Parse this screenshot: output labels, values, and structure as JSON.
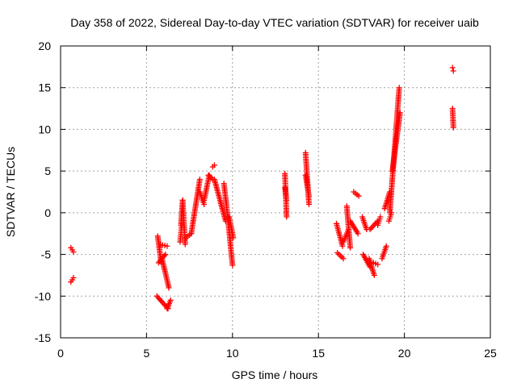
{
  "chart_data": {
    "type": "scatter",
    "title": "Day 358 of 2022, Sidereal Day-to-day VTEC variation (SDTVAR) for receiver uaib",
    "xlabel": "GPS time / hours",
    "ylabel": "SDTVAR / TECUs",
    "xlim": [
      0,
      25
    ],
    "ylim": [
      -15,
      20
    ],
    "xticks": [
      "0",
      "5",
      "10",
      "15",
      "20",
      "25"
    ],
    "yticks": [
      "-15",
      "-10",
      "-5",
      "0",
      "5",
      "10",
      "15",
      "20"
    ],
    "grid": true,
    "marker": "plus",
    "color": "#ff0000",
    "series": [
      {
        "name": "SDTVAR",
        "segments": [
          {
            "x": [
              0.6,
              0.75
            ],
            "y": [
              -4.2,
              -4.7
            ]
          },
          {
            "x": [
              0.6,
              0.75
            ],
            "y": [
              -8.3,
              -7.8
            ]
          },
          {
            "x": [
              5.65,
              5.85
            ],
            "y": [
              -2.8,
              -6.0
            ]
          },
          {
            "x": [
              5.7,
              6.1
            ],
            "y": [
              -6.0,
              -5.0
            ]
          },
          {
            "x": [
              5.8,
              6.2
            ],
            "y": [
              -3.8,
              -4.0
            ]
          },
          {
            "x": [
              5.9,
              6.3
            ],
            "y": [
              -5.5,
              -9.0
            ]
          },
          {
            "x": [
              5.6,
              6.25
            ],
            "y": [
              -10.0,
              -11.5
            ]
          },
          {
            "x": [
              6.2,
              6.4
            ],
            "y": [
              -11.5,
              -10.5
            ]
          },
          {
            "x": [
              6.95,
              7.05
            ],
            "y": [
              -3.5,
              -1.5
            ]
          },
          {
            "x": [
              7.0,
              7.1
            ],
            "y": [
              -1.5,
              1.5
            ]
          },
          {
            "x": [
              7.1,
              7.25
            ],
            "y": [
              1.5,
              -3.8
            ]
          },
          {
            "x": [
              7.3,
              7.6
            ],
            "y": [
              -3.0,
              -2.5
            ]
          },
          {
            "x": [
              7.6,
              8.1
            ],
            "y": [
              -2.5,
              4.0
            ]
          },
          {
            "x": [
              8.1,
              8.35
            ],
            "y": [
              2.5,
              1.0
            ]
          },
          {
            "x": [
              8.35,
              8.65
            ],
            "y": [
              1.5,
              4.5
            ]
          },
          {
            "x": [
              8.6,
              8.85
            ],
            "y": [
              4.5,
              4.0
            ]
          },
          {
            "x": [
              8.85,
              8.95
            ],
            "y": [
              5.5,
              5.7
            ]
          },
          {
            "x": [
              8.95,
              9.6
            ],
            "y": [
              4.0,
              -1.0
            ]
          },
          {
            "x": [
              9.5,
              9.7
            ],
            "y": [
              3.5,
              0.0
            ]
          },
          {
            "x": [
              9.7,
              10.0
            ],
            "y": [
              0.0,
              -6.3
            ]
          },
          {
            "x": [
              9.8,
              10.05
            ],
            "y": [
              -0.5,
              -3.0
            ]
          },
          {
            "x": [
              13.05,
              13.15
            ],
            "y": [
              4.7,
              -0.5
            ]
          },
          {
            "x": [
              13.05,
              13.15
            ],
            "y": [
              3.0,
              1.5
            ]
          },
          {
            "x": [
              14.25,
              14.45
            ],
            "y": [
              7.2,
              1.0
            ]
          },
          {
            "x": [
              14.25,
              14.45
            ],
            "y": [
              4.5,
              2.0
            ]
          },
          {
            "x": [
              16.05,
              16.4
            ],
            "y": [
              -1.3,
              -4.0
            ]
          },
          {
            "x": [
              16.1,
              16.45
            ],
            "y": [
              -4.8,
              -5.5
            ]
          },
          {
            "x": [
              16.45,
              16.75
            ],
            "y": [
              -3.5,
              -2.0
            ]
          },
          {
            "x": [
              16.65,
              16.85
            ],
            "y": [
              0.8,
              -4.2
            ]
          },
          {
            "x": [
              16.85,
              17.3
            ],
            "y": [
              -1.0,
              -2.5
            ]
          },
          {
            "x": [
              17.05,
              17.35
            ],
            "y": [
              2.5,
              2.0
            ]
          },
          {
            "x": [
              17.55,
              17.8
            ],
            "y": [
              -0.5,
              -2.0
            ]
          },
          {
            "x": [
              17.6,
              18.0
            ],
            "y": [
              -5.0,
              -6.5
            ]
          },
          {
            "x": [
              17.95,
              18.25
            ],
            "y": [
              -5.5,
              -7.5
            ]
          },
          {
            "x": [
              18.0,
              18.45
            ],
            "y": [
              -2.0,
              -1.0
            ]
          },
          {
            "x": [
              18.2,
              18.45
            ],
            "y": [
              -6.0,
              -6.2
            ]
          },
          {
            "x": [
              18.45,
              18.6
            ],
            "y": [
              -1.5,
              -0.5
            ]
          },
          {
            "x": [
              18.7,
              18.95
            ],
            "y": [
              -5.5,
              -4.0
            ]
          },
          {
            "x": [
              18.85,
              19.15
            ],
            "y": [
              0.5,
              2.5
            ]
          },
          {
            "x": [
              19.1,
              19.25
            ],
            "y": [
              -1.0,
              0.0
            ]
          },
          {
            "x": [
              19.15,
              19.7
            ],
            "y": [
              0.0,
              15.0
            ]
          },
          {
            "x": [
              19.3,
              19.75
            ],
            "y": [
              5.0,
              12.0
            ]
          },
          {
            "x": [
              22.8,
              22.85
            ],
            "y": [
              17.4,
              17.0
            ]
          },
          {
            "x": [
              22.8,
              22.85
            ],
            "y": [
              12.5,
              10.2
            ]
          }
        ]
      }
    ]
  }
}
